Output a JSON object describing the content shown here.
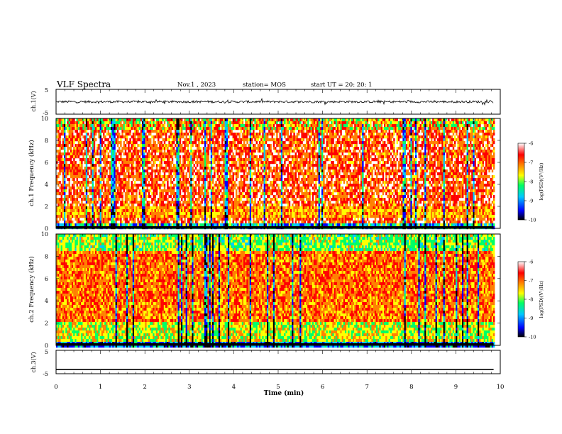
{
  "header": {
    "title": "VLF Spectra",
    "date": "Nov.1 , 2023",
    "station": "station= MOS",
    "start": "start UT = 20: 20: 1"
  },
  "chart_data": [
    {
      "type": "line",
      "panel": "ch1-waveform",
      "ylabel": "ch.1(V)",
      "ylim": [
        -5,
        5
      ],
      "yticks": [
        "5",
        "-5"
      ],
      "series": [
        {
          "values_description_free": true,
          "level": 0
        }
      ]
    },
    {
      "type": "heatmap",
      "panel": "ch1-spectrogram",
      "ylabel": "ch.1 Frequency (kHz)",
      "ylim": [
        0,
        10
      ],
      "yticks": [
        "0",
        "2",
        "4",
        "6",
        "8",
        "10"
      ],
      "colorbar": {
        "label": "log(PSD)(V²/Hz)",
        "range": [
          -10,
          -6
        ],
        "ticks": [
          "-6",
          "-7",
          "-8",
          "-9",
          "-10"
        ]
      }
    },
    {
      "type": "heatmap",
      "panel": "ch2-spectrogram",
      "ylabel": "ch.2 Frequency (kHz)",
      "ylim": [
        0,
        10
      ],
      "yticks": [
        "0",
        "2",
        "4",
        "6",
        "8",
        "10"
      ],
      "colorbar": {
        "label": "log(PSD)(V²/Hz)",
        "range": [
          -10,
          -6
        ],
        "ticks": [
          "-6",
          "-7",
          "-8",
          "-9",
          "-10"
        ]
      }
    },
    {
      "type": "line",
      "panel": "ch3-waveform",
      "ylabel": "ch.3(V)",
      "ylim": [
        -5,
        5
      ],
      "yticks": [
        "5",
        "-5"
      ],
      "series": [
        {
          "level": -3.2
        }
      ]
    }
  ],
  "xaxis": {
    "label": "Time (min)",
    "range": [
      0,
      10
    ],
    "ticks": [
      "0",
      "1",
      "2",
      "3",
      "4",
      "5",
      "6",
      "7",
      "8",
      "9",
      "10"
    ],
    "data_end": 9.85
  },
  "colors": {
    "scale": [
      "#000000",
      "#0000ff",
      "#00c8ff",
      "#00ff64",
      "#ffff00",
      "#ff8000",
      "#ff0000",
      "#ffffff"
    ]
  }
}
